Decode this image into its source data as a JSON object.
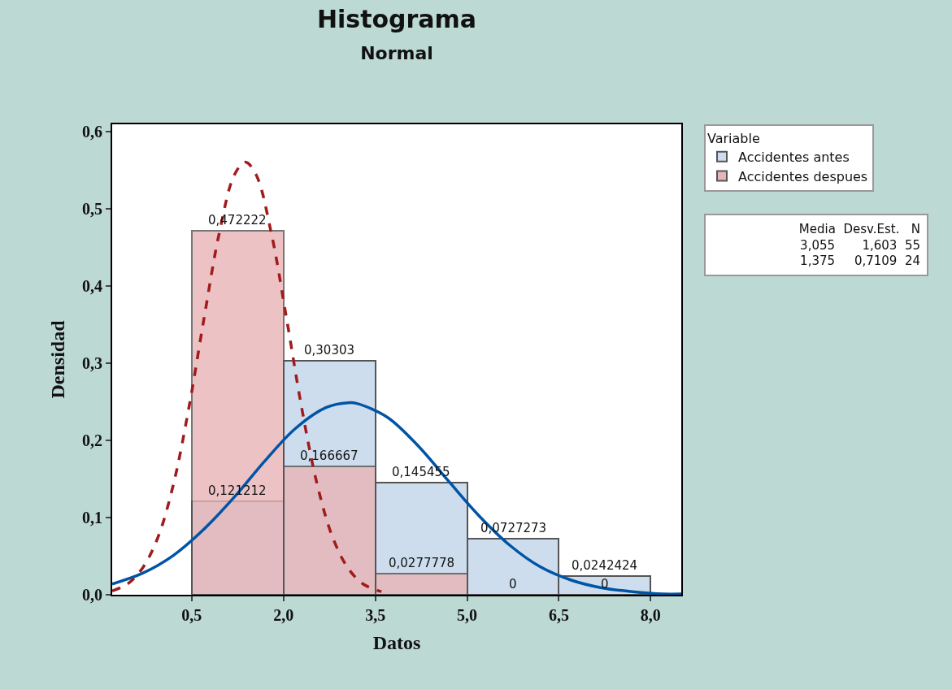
{
  "chart_data": {
    "type": "histogram",
    "title": "Histograma",
    "subtitle": "Normal",
    "xlabel": "Datos",
    "ylabel": "Densidad",
    "legend_title": "Variable",
    "bins": [
      0.5,
      2.0,
      3.5,
      5.0,
      6.5,
      8.0
    ],
    "xlim": [
      -0.8,
      8.5
    ],
    "xticks": [
      {
        "value": 0.5,
        "label": "0,5"
      },
      {
        "value": 2.0,
        "label": "2,0"
      },
      {
        "value": 3.5,
        "label": "3,5"
      },
      {
        "value": 5.0,
        "label": "5,0"
      },
      {
        "value": 6.5,
        "label": "6,5"
      },
      {
        "value": 8.0,
        "label": "8,0"
      }
    ],
    "ylim": [
      0,
      0.61
    ],
    "yticks": [
      {
        "value": 0,
        "label": "0,0"
      },
      {
        "value": 0.1,
        "label": "0,1"
      },
      {
        "value": 0.2,
        "label": "0,2"
      },
      {
        "value": 0.3,
        "label": "0,3"
      },
      {
        "value": 0.4,
        "label": "0,4"
      },
      {
        "value": 0.5,
        "label": "0,5"
      },
      {
        "value": 0.6,
        "label": "0,6"
      }
    ],
    "legend": "top right",
    "series": [
      {
        "name": "Accidentes antes",
        "color": "#cddded",
        "values": [
          0.121212,
          0.30303,
          0.145455,
          0.0727273,
          0.0242424
        ],
        "value_labels": [
          "0,121212",
          "0,30303",
          "0,145455",
          "0,0727273",
          "0,0242424"
        ]
      },
      {
        "name": "Accidentes despues",
        "color": "#e8b4b6",
        "values": [
          0.472222,
          0.166667,
          0.0277778,
          0,
          0
        ],
        "value_labels": [
          "0,472222",
          "0,166667",
          "0,0277778",
          "0",
          "0"
        ]
      },
      {
        "type": "line",
        "color": "#0054a6",
        "line_style": "solid",
        "marker": "none",
        "x": [
          -0.8,
          -0.3,
          0.2,
          0.7,
          1.2,
          1.7,
          2.2,
          2.7,
          3.055,
          3.2,
          3.7,
          4.2,
          4.7,
          5.2,
          5.7,
          6.2,
          6.7,
          7.2,
          7.7,
          8.2,
          8.5
        ],
        "values": [
          0.014,
          0.028,
          0.051,
          0.085,
          0.127,
          0.174,
          0.216,
          0.243,
          0.249,
          0.248,
          0.23,
          0.193,
          0.147,
          0.102,
          0.064,
          0.036,
          0.019,
          0.009,
          0.004,
          0.001,
          0.001
        ]
      },
      {
        "type": "line",
        "color": "#a01c1c",
        "line_style": "dashed",
        "marker": "none",
        "x": [
          -0.8,
          -0.55,
          -0.3,
          -0.05,
          0.2,
          0.45,
          0.7,
          0.95,
          1.2,
          1.375,
          1.55,
          1.8,
          2.05,
          2.3,
          2.55,
          2.8,
          3.05,
          3.3,
          3.6
        ],
        "values": [
          0.005,
          0.014,
          0.035,
          0.075,
          0.143,
          0.241,
          0.358,
          0.469,
          0.545,
          0.561,
          0.545,
          0.469,
          0.358,
          0.241,
          0.143,
          0.075,
          0.035,
          0.014,
          0.004
        ]
      }
    ],
    "annotations": [
      "Media  Desv.Est.   N",
      "3,055       1,603  55",
      "1,375     0,7109  24"
    ]
  }
}
